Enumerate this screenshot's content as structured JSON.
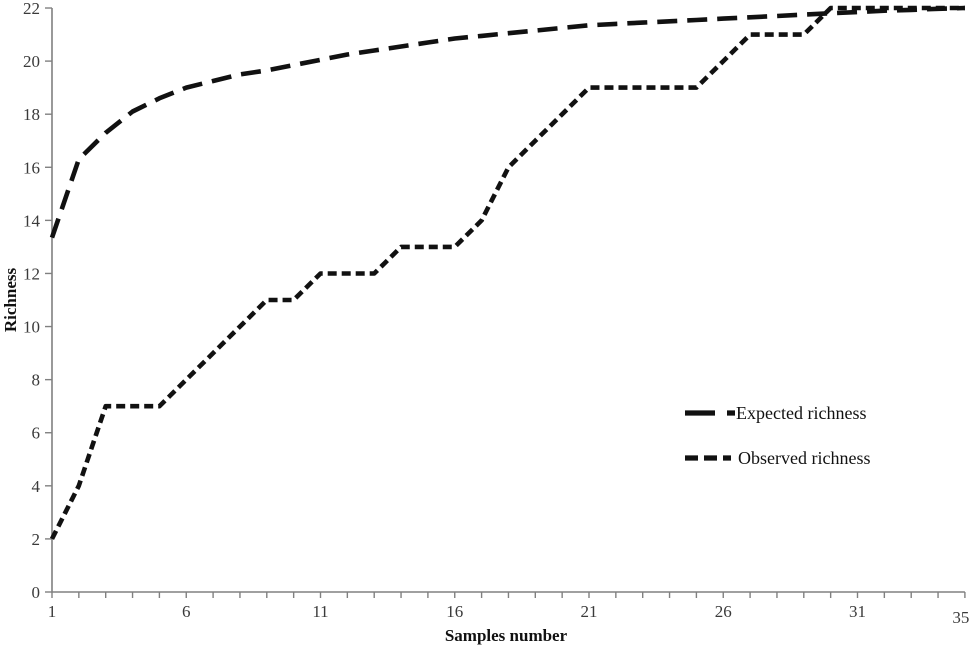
{
  "chart_data": {
    "type": "line",
    "title": "",
    "xlabel": "Samples number",
    "ylabel": "Richness",
    "xlim": [
      1,
      35
    ],
    "ylim": [
      0,
      22
    ],
    "xticks": [
      1,
      6,
      11,
      16,
      21,
      26,
      31,
      35
    ],
    "yticks": [
      0,
      2,
      4,
      6,
      8,
      10,
      12,
      14,
      16,
      18,
      20,
      22
    ],
    "minor_x_tick_every": 1,
    "grid": false,
    "legend_position": "right-middle",
    "x": [
      1,
      2,
      3,
      4,
      5,
      6,
      7,
      8,
      9,
      10,
      11,
      12,
      13,
      14,
      15,
      16,
      17,
      18,
      19,
      20,
      21,
      22,
      23,
      24,
      25,
      26,
      27,
      28,
      29,
      30,
      31,
      32,
      33,
      34,
      35
    ],
    "series": [
      {
        "name": "Expected richness",
        "dash": "long",
        "values": [
          13.35,
          16.3,
          17.3,
          18.1,
          18.6,
          19.0,
          19.25,
          19.5,
          19.65,
          19.85,
          20.05,
          20.25,
          20.4,
          20.55,
          20.7,
          20.85,
          20.95,
          21.05,
          21.15,
          21.25,
          21.35,
          21.4,
          21.45,
          21.5,
          21.55,
          21.6,
          21.65,
          21.7,
          21.75,
          21.8,
          21.85,
          21.9,
          21.93,
          21.97,
          22.0
        ]
      },
      {
        "name": "Observed richness",
        "dash": "short",
        "values": [
          2,
          4,
          7,
          7,
          7,
          8,
          9,
          10,
          11,
          11,
          12,
          12,
          12,
          13,
          13,
          13,
          14,
          16,
          17,
          18,
          19,
          19,
          19,
          19,
          19,
          20,
          21,
          21,
          21,
          22,
          22,
          22,
          22,
          22,
          22
        ]
      }
    ],
    "colors": {
      "line": "#111111",
      "axis": "#808080",
      "tick_text": "#3a3a3a",
      "background": "#ffffff"
    }
  }
}
